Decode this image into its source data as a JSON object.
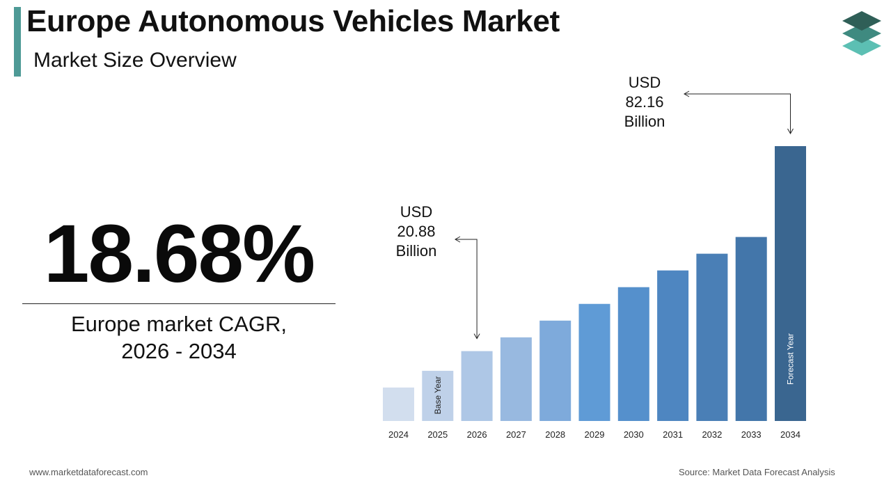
{
  "header": {
    "title": "Europe Autonomous Vehicles Market",
    "subtitle": "Market Size Overview"
  },
  "logo": {
    "icon": "stacked-layers-icon",
    "colors": [
      "#2f5f57",
      "#3f8a80",
      "#5cbfb3"
    ]
  },
  "highlight": {
    "cagr_value": "18.68%",
    "cagr_label_line1": "Europe market CAGR,",
    "cagr_label_line2": "2026 - 2034"
  },
  "chart_data": {
    "type": "bar",
    "categories": [
      "2024",
      "2025",
      "2026",
      "2027",
      "2028",
      "2029",
      "2030",
      "2031",
      "2032",
      "2033",
      "2034"
    ],
    "values": [
      10,
      15,
      20.88,
      25,
      30,
      35,
      40,
      45,
      50,
      55,
      82.16
    ],
    "bar_colors": [
      "#d2deee",
      "#bfd1e9",
      "#aec7e6",
      "#98b9e0",
      "#7eaadb",
      "#5f9bd6",
      "#5590cc",
      "#4e86c1",
      "#4a7fb6",
      "#4376aa",
      "#3a6690"
    ],
    "bar_labels": [
      {
        "category": "2025",
        "text": "Base Year",
        "color": "#222222"
      },
      {
        "category": "2034",
        "text": "Forecast Year",
        "color": "#ffffff"
      }
    ],
    "annotations": [
      {
        "category": "2026",
        "lines": [
          "USD",
          "20.88",
          "Billion"
        ]
      },
      {
        "category": "2034",
        "lines": [
          "USD",
          "82.16",
          "Billion"
        ]
      }
    ],
    "ylim": [
      0,
      82.16
    ]
  },
  "footer": {
    "website": "www.marketdataforecast.com",
    "source": "Source: Market Data Forecast Analysis"
  }
}
